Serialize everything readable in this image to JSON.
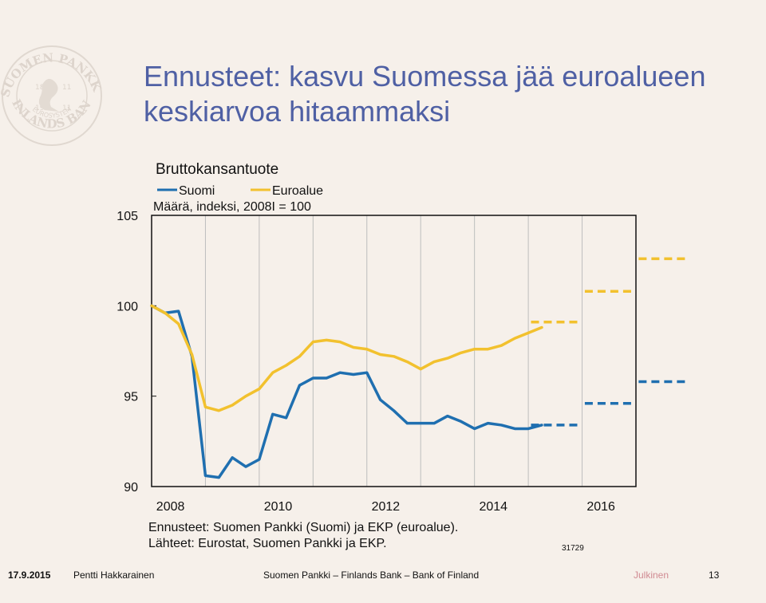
{
  "title": "Ennusteet: kasvu Suomessa jää euroalueen keskiarvoa hitaammaksi",
  "logo": {
    "icon": "bank-of-finland-seal-icon",
    "text_top": "SUOMEN PANKKI",
    "text_bottom": "FINLANDS BANK",
    "text_ring": "EUROSYSTEM",
    "year_left": "18",
    "year_right": "11",
    "year_left2": "19",
    "year_right2": "11"
  },
  "chart_data": {
    "type": "line",
    "title": "Bruttokansantuote",
    "subtitle": "Määrä, indeksi, 2008I = 100",
    "ylim": [
      90,
      105
    ],
    "yticks": [
      "90",
      "95",
      "100",
      "105"
    ],
    "xlim": [
      2008,
      2017
    ],
    "xticks": [
      "2008",
      "2010",
      "2012",
      "2014",
      "2016"
    ],
    "legend_position": "top-left",
    "grid": "vertical",
    "colors": {
      "suomi": "#1f6fb0",
      "euroalue": "#f2c12e"
    },
    "series": [
      {
        "name": "Suomi",
        "x": [
          2008.0,
          2008.25,
          2008.5,
          2008.75,
          2009.0,
          2009.25,
          2009.5,
          2009.75,
          2010.0,
          2010.25,
          2010.5,
          2010.75,
          2011.0,
          2011.25,
          2011.5,
          2011.75,
          2012.0,
          2012.25,
          2012.5,
          2012.75,
          2013.0,
          2013.25,
          2013.5,
          2013.75,
          2014.0,
          2014.25,
          2014.5,
          2014.75,
          2015.0,
          2015.25
        ],
        "values": [
          100.0,
          99.6,
          99.7,
          97.2,
          90.6,
          90.5,
          91.6,
          91.1,
          91.5,
          94.0,
          93.8,
          95.6,
          96.0,
          96.0,
          96.3,
          96.2,
          96.3,
          94.8,
          94.2,
          93.5,
          93.5,
          93.5,
          93.9,
          93.6,
          93.2,
          93.5,
          93.4,
          93.2,
          93.2,
          93.4
        ]
      },
      {
        "name": "Euroalue",
        "x": [
          2008.0,
          2008.25,
          2008.5,
          2008.75,
          2009.0,
          2009.25,
          2009.5,
          2009.75,
          2010.0,
          2010.25,
          2010.5,
          2010.75,
          2011.0,
          2011.25,
          2011.5,
          2011.75,
          2012.0,
          2012.25,
          2012.5,
          2012.75,
          2013.0,
          2013.25,
          2013.5,
          2013.75,
          2014.0,
          2014.25,
          2014.5,
          2014.75,
          2015.0,
          2015.25
        ],
        "values": [
          100.0,
          99.6,
          99.0,
          97.3,
          94.4,
          94.2,
          94.5,
          95.0,
          95.4,
          96.3,
          96.7,
          97.2,
          98.0,
          98.1,
          98.0,
          97.7,
          97.6,
          97.3,
          97.2,
          96.9,
          96.5,
          96.9,
          97.1,
          97.4,
          97.6,
          97.6,
          97.8,
          98.2,
          98.5,
          98.8
        ]
      }
    ],
    "forecasts": [
      {
        "series": "Suomi",
        "year": 2015,
        "value": 93.4
      },
      {
        "series": "Suomi",
        "year": 2016,
        "value": 94.6
      },
      {
        "series": "Suomi",
        "year": 2017,
        "value": 95.8
      },
      {
        "series": "Euroalue",
        "year": 2015,
        "value": 99.1
      },
      {
        "series": "Euroalue",
        "year": 2016,
        "value": 100.8
      },
      {
        "series": "Euroalue",
        "year": 2017,
        "value": 102.6
      }
    ]
  },
  "footnotes": {
    "line1": "Ennusteet: Suomen Pankki (Suomi) ja EKP (euroalue).",
    "line2": "Lähteet: Eurostat, Suomen Pankki ja EKP.",
    "chart_id": "31729"
  },
  "footer": {
    "date": "17.9.2015",
    "author": "Pentti Hakkarainen",
    "org": "Suomen Pankki – Finlands Bank – Bank of Finland",
    "classification": "Julkinen",
    "page": "13"
  }
}
